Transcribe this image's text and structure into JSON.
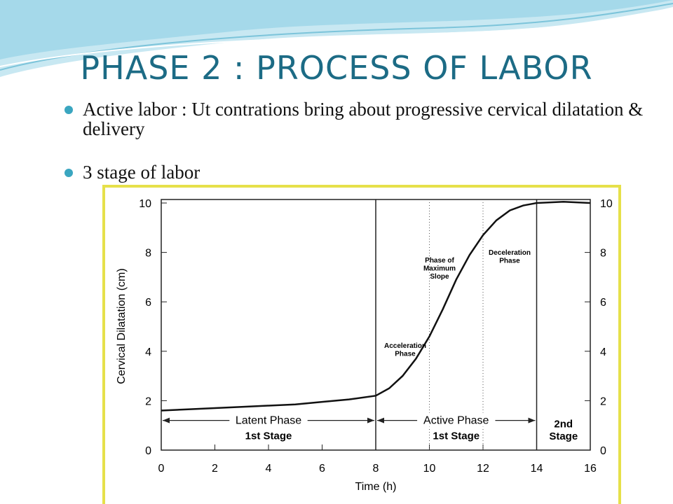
{
  "header": {
    "title": "PHASE 2 : PROCESS OF LABOR"
  },
  "bullets": [
    "Active labor : Ut contrations bring about progressive cervical dilatation & delivery",
    "3 stage of labor"
  ],
  "chart_data": {
    "type": "line",
    "xlabel": "Time (h)",
    "ylabel": "Cervical Dilatation (cm)",
    "x": [
      0,
      1,
      2,
      3,
      4,
      5,
      6,
      7,
      8,
      8.5,
      9,
      9.5,
      10,
      10.5,
      11,
      11.5,
      12,
      12.5,
      13,
      13.5,
      14,
      15,
      16
    ],
    "values": [
      1.6,
      1.65,
      1.7,
      1.75,
      1.8,
      1.85,
      1.95,
      2.05,
      2.2,
      2.5,
      3.0,
      3.7,
      4.6,
      5.7,
      6.9,
      7.9,
      8.7,
      9.3,
      9.7,
      9.9,
      10,
      10.05,
      10
    ],
    "color": "#111111",
    "xlim": [
      0,
      16
    ],
    "xticks": [
      0,
      2,
      4,
      6,
      8,
      10,
      12,
      14,
      16
    ],
    "ylim": [
      0,
      10
    ],
    "yticks": [
      0,
      2,
      4,
      6,
      8,
      10
    ],
    "y2lim": [
      0,
      10
    ],
    "y2ticks": [
      0,
      2,
      4,
      6,
      8,
      10
    ],
    "stage_lines": [
      8,
      14
    ],
    "phase_lines": [
      10,
      12
    ],
    "annotations": [
      "Latent Phase",
      "1st Stage",
      "Active Phase",
      "1st Stage",
      "2nd Stage",
      "Acceleration Phase",
      "Phase of Maximum Slope",
      "Deceleration Phase"
    ]
  }
}
